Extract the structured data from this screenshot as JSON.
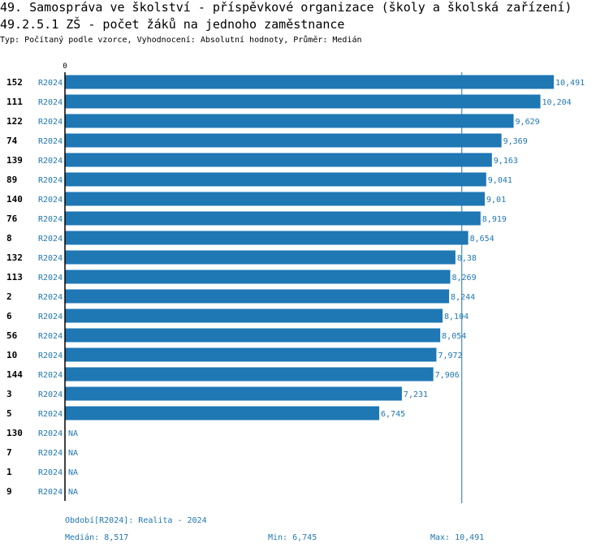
{
  "header": {
    "title_line1": "49. Samospráva ve školství - příspěvkové organizace (školy a školská zařízení)",
    "title_line2": "49.2.5.1 ZŠ - počet žáků na jednoho zaměstnance",
    "subtitle": "Typ: Počítaný podle vzorce, Vyhodnocení: Absolutní hodnoty, Průměr: Medián"
  },
  "colors": {
    "bar": "#1f77b4",
    "label": "#1f77b4",
    "axis": "#000000",
    "median_line": "#1f77b4"
  },
  "chart_data": {
    "type": "bar",
    "orientation": "horizontal",
    "xlim": [
      0,
      10.491
    ],
    "x_tick_labels": [
      "0"
    ],
    "median_value": 8.517,
    "rows": [
      {
        "id": "152",
        "period": "R2024",
        "value": 10.491,
        "label": "10,491"
      },
      {
        "id": "111",
        "period": "R2024",
        "value": 10.204,
        "label": "10,204"
      },
      {
        "id": "122",
        "period": "R2024",
        "value": 9.629,
        "label": "9,629"
      },
      {
        "id": "74",
        "period": "R2024",
        "value": 9.369,
        "label": "9,369"
      },
      {
        "id": "139",
        "period": "R2024",
        "value": 9.163,
        "label": "9,163"
      },
      {
        "id": "89",
        "period": "R2024",
        "value": 9.041,
        "label": "9,041"
      },
      {
        "id": "140",
        "period": "R2024",
        "value": 9.01,
        "label": "9,01"
      },
      {
        "id": "76",
        "period": "R2024",
        "value": 8.919,
        "label": "8,919"
      },
      {
        "id": "8",
        "period": "R2024",
        "value": 8.654,
        "label": "8,654"
      },
      {
        "id": "132",
        "period": "R2024",
        "value": 8.38,
        "label": "8,38"
      },
      {
        "id": "113",
        "period": "R2024",
        "value": 8.269,
        "label": "8,269"
      },
      {
        "id": "2",
        "period": "R2024",
        "value": 8.244,
        "label": "8,244"
      },
      {
        "id": "6",
        "period": "R2024",
        "value": 8.104,
        "label": "8,104"
      },
      {
        "id": "56",
        "period": "R2024",
        "value": 8.054,
        "label": "8,054"
      },
      {
        "id": "10",
        "period": "R2024",
        "value": 7.972,
        "label": "7,972"
      },
      {
        "id": "144",
        "period": "R2024",
        "value": 7.906,
        "label": "7,906"
      },
      {
        "id": "3",
        "period": "R2024",
        "value": 7.231,
        "label": "7,231"
      },
      {
        "id": "5",
        "period": "R2024",
        "value": 6.745,
        "label": "6,745"
      },
      {
        "id": "130",
        "period": "R2024",
        "value": null,
        "label": "NA"
      },
      {
        "id": "7",
        "period": "R2024",
        "value": null,
        "label": "NA"
      },
      {
        "id": "1",
        "period": "R2024",
        "value": null,
        "label": "NA"
      },
      {
        "id": "9",
        "period": "R2024",
        "value": null,
        "label": "NA"
      }
    ]
  },
  "footer": {
    "period_legend": "Období[R2024]: Realita - 2024",
    "median_label": "Medián:",
    "median_value": "8,517",
    "min_label": "Min:",
    "min_value": "6,745",
    "max_label": "Max:",
    "max_value": "10,491"
  }
}
